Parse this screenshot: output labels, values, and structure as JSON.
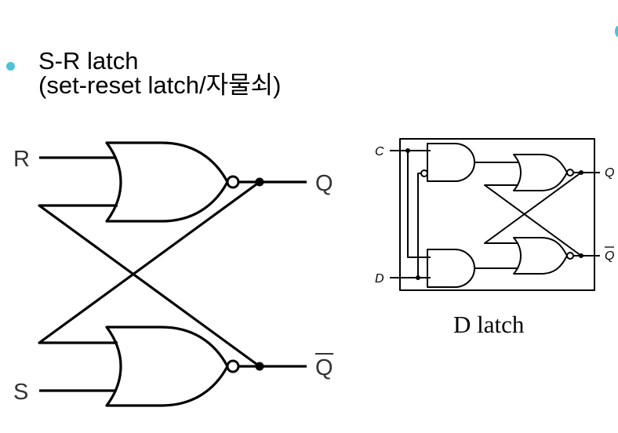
{
  "title": {
    "line1": "S-R latch",
    "line2": "(set-reset latch/자물쇠)"
  },
  "sr_latch": {
    "input_r": "R",
    "input_s": "S",
    "output_q": "Q",
    "output_qbar": "Q"
  },
  "d_latch": {
    "input_c": "C",
    "input_d": "D",
    "output_q": "Q",
    "output_qbar": "Q",
    "caption": "D latch"
  }
}
